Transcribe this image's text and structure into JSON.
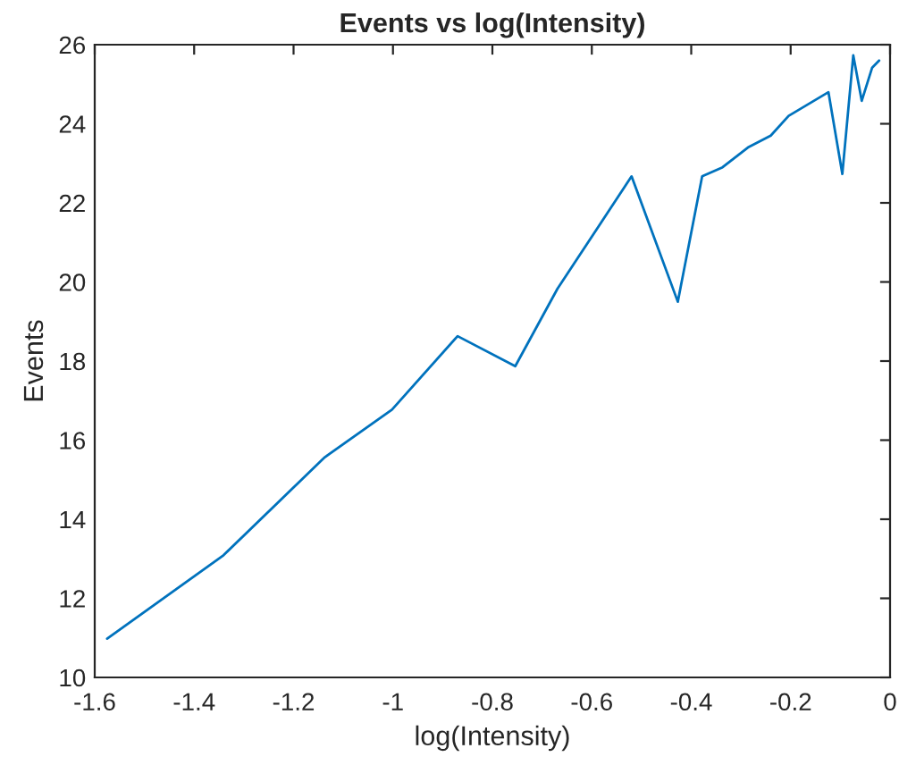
{
  "chart_data": {
    "type": "line",
    "title": "Events vs log(Intensity)",
    "xlabel": "log(Intensity)",
    "ylabel": "Events",
    "x": [
      -1.575,
      -1.341,
      -1.137,
      -1.002,
      -0.87,
      -0.754,
      -0.669,
      -0.52,
      -0.427,
      -0.378,
      -0.337,
      -0.286,
      -0.24,
      -0.204,
      -0.124,
      -0.096,
      -0.074,
      -0.057,
      -0.036,
      -0.022
    ],
    "series": [
      {
        "color": "#0072bd",
        "values": [
          10.98,
          13.09,
          15.57,
          16.77,
          18.63,
          17.87,
          19.83,
          22.67,
          19.5,
          22.67,
          22.9,
          23.4,
          23.7,
          24.2,
          24.8,
          22.73,
          25.73,
          24.58,
          25.42,
          25.6
        ]
      }
    ],
    "xlim": [
      -1.6,
      0
    ],
    "xticks": [
      {
        "value": -1.6,
        "label": "-1.6"
      },
      {
        "value": -1.4,
        "label": "-1.4"
      },
      {
        "value": -1.2,
        "label": "-1.2"
      },
      {
        "value": -1,
        "label": "-1"
      },
      {
        "value": -0.8,
        "label": "-0.8"
      },
      {
        "value": -0.6,
        "label": "-0.6"
      },
      {
        "value": -0.4,
        "label": "-0.4"
      },
      {
        "value": -0.2,
        "label": "-0.2"
      },
      0
    ],
    "ylim": [
      10,
      26
    ],
    "yticks": [
      10,
      12,
      14,
      16,
      18,
      20,
      22,
      24,
      26
    ],
    "grid": false,
    "marker": "none",
    "line_style": "solid"
  }
}
